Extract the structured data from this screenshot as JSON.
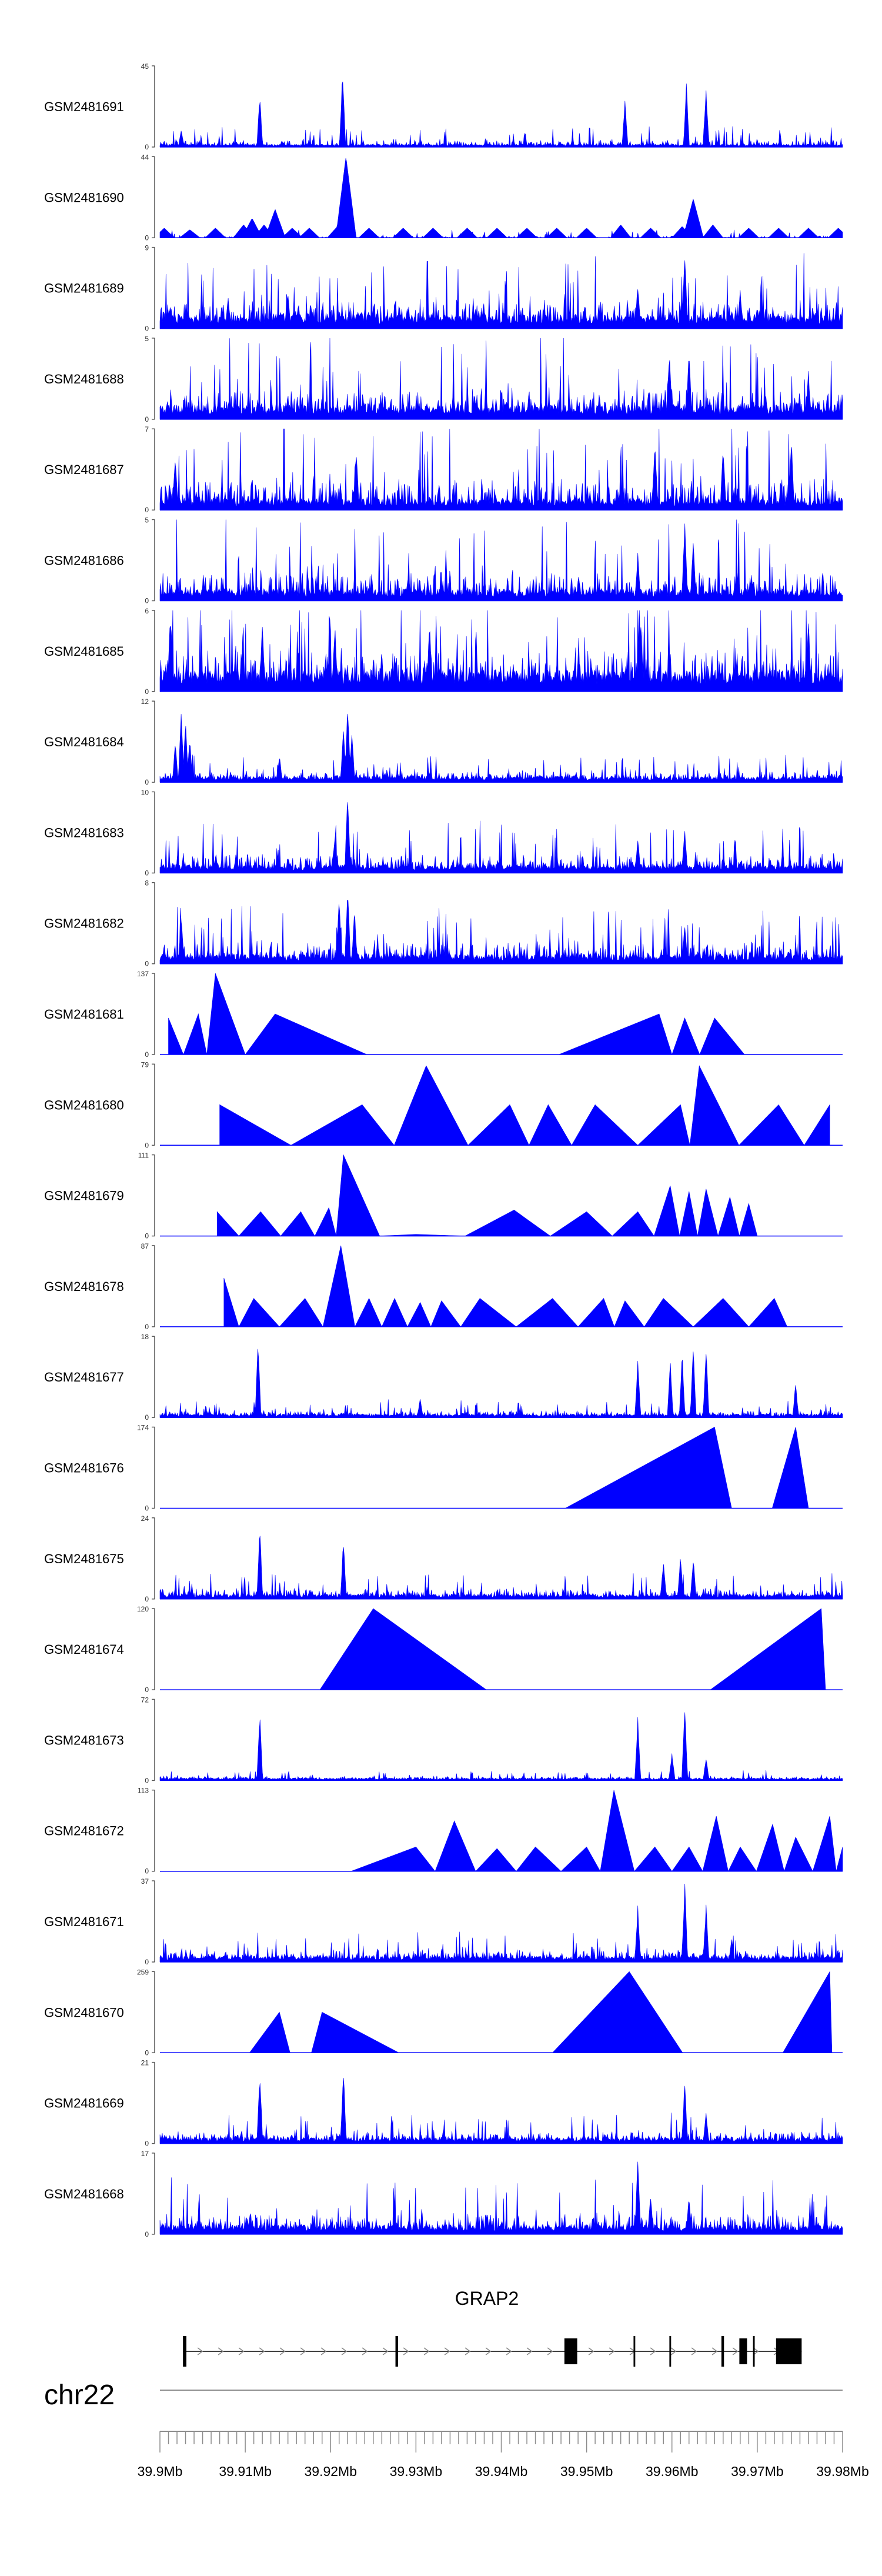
{
  "chart_data": {
    "type": "area",
    "title": "",
    "series_color": "#0000ff",
    "xlim": [
      39.9,
      39.98
    ],
    "x_ticks": [
      "39.9Mb",
      "39.91Mb",
      "39.92Mb",
      "39.93Mb",
      "39.94Mb",
      "39.95Mb",
      "39.96Mb",
      "39.97Mb",
      "39.98Mb"
    ],
    "chromosome": "chr22",
    "gene": {
      "name": "GRAP2",
      "start": 39.9027,
      "end": 39.9752,
      "exons": [
        [
          39.9027,
          39.9031
        ],
        [
          39.9276,
          39.9279
        ],
        [
          39.9474,
          39.9489
        ],
        [
          39.9555,
          39.9557
        ],
        [
          39.9597,
          39.9599
        ],
        [
          39.9658,
          39.9661
        ],
        [
          39.9679,
          39.9688
        ],
        [
          39.9695,
          39.9697
        ],
        [
          39.9722,
          39.9752
        ]
      ]
    },
    "tracks": [
      {
        "name": "GSM2481691",
        "ymax": "45",
        "style": "dense",
        "seed": 91,
        "base": 0.025,
        "noise": 0.12,
        "peaks": [
          [
            39.9025,
            0.22
          ],
          [
            39.9117,
            0.65
          ],
          [
            39.9214,
            1.0
          ],
          [
            39.9545,
            0.62
          ],
          [
            39.9617,
            0.82
          ],
          [
            39.964,
            0.75
          ]
        ]
      },
      {
        "name": "GSM2481690",
        "ymax": "44",
        "style": "dense",
        "seed": 90,
        "base": 0.0,
        "noise": 0.05,
        "peaks": [],
        "tri": [
          [
            39.9005,
            0.12
          ],
          [
            39.9035,
            0.1
          ],
          [
            39.9065,
            0.12
          ],
          [
            39.9098,
            0.16
          ],
          [
            39.9108,
            0.24
          ],
          [
            39.9122,
            0.16
          ],
          [
            39.9135,
            0.35
          ],
          [
            39.9155,
            0.12
          ],
          [
            39.9175,
            0.12
          ],
          [
            39.9208,
            0.14
          ],
          [
            39.9218,
            1.0
          ],
          [
            39.9245,
            0.12
          ],
          [
            39.9285,
            0.12
          ],
          [
            39.932,
            0.12
          ],
          [
            39.936,
            0.12
          ],
          [
            39.9395,
            0.12
          ],
          [
            39.943,
            0.12
          ],
          [
            39.9465,
            0.12
          ],
          [
            39.95,
            0.12
          ],
          [
            39.954,
            0.16
          ],
          [
            39.9575,
            0.12
          ],
          [
            39.9612,
            0.14
          ],
          [
            39.9625,
            0.48
          ],
          [
            39.9648,
            0.16
          ],
          [
            39.969,
            0.12
          ],
          [
            39.9725,
            0.12
          ],
          [
            39.976,
            0.12
          ],
          [
            39.9795,
            0.12
          ]
        ]
      },
      {
        "name": "GSM2481689",
        "ymax": "9",
        "style": "dense",
        "seed": 89,
        "base": 0.12,
        "noise": 0.38,
        "peaks": [
          [
            39.908,
            0.4
          ],
          [
            39.915,
            0.45
          ],
          [
            39.9615,
            0.95
          ],
          [
            39.956,
            0.55
          ],
          [
            39.968,
            0.5
          ]
        ]
      },
      {
        "name": "GSM2481688",
        "ymax": "5",
        "style": "dense",
        "seed": 88,
        "base": 0.12,
        "noise": 0.45,
        "peaks": [
          [
            39.9597,
            0.9
          ],
          [
            39.962,
            0.85
          ],
          [
            39.976,
            0.6
          ]
        ]
      },
      {
        "name": "GSM2481687",
        "ymax": "7",
        "style": "dense",
        "seed": 87,
        "base": 0.1,
        "noise": 0.5,
        "peaks": [
          [
            39.9018,
            0.72
          ],
          [
            39.923,
            0.78
          ],
          [
            39.958,
            0.9
          ],
          [
            39.966,
            0.85
          ],
          [
            39.974,
            0.92
          ]
        ]
      },
      {
        "name": "GSM2481686",
        "ymax": "5",
        "style": "dense",
        "seed": 86,
        "base": 0.1,
        "noise": 0.45,
        "peaks": [
          [
            39.9615,
            1.0
          ],
          [
            39.9625,
            0.8
          ],
          [
            39.956,
            0.6
          ]
        ]
      },
      {
        "name": "GSM2481685",
        "ymax": "6",
        "style": "dense",
        "seed": 85,
        "base": 0.18,
        "noise": 0.55,
        "peaks": [
          [
            39.9012,
            0.95
          ],
          [
            39.912,
            0.9
          ],
          [
            39.9205,
            0.85
          ],
          [
            39.9316,
            0.9
          ],
          [
            39.9562,
            0.9
          ],
          [
            39.976,
            0.9
          ]
        ]
      },
      {
        "name": "GSM2481684",
        "ymax": "12",
        "style": "dense",
        "seed": 84,
        "base": 0.05,
        "noise": 0.14,
        "peaks": [
          [
            39.9025,
            0.92
          ],
          [
            39.903,
            0.8
          ],
          [
            39.9035,
            0.55
          ],
          [
            39.9018,
            0.5
          ],
          [
            39.914,
            0.35
          ],
          [
            39.922,
            1.0
          ],
          [
            39.9215,
            0.7
          ],
          [
            39.9225,
            0.65
          ]
        ]
      },
      {
        "name": "GSM2481683",
        "ymax": "10",
        "style": "dense",
        "seed": 83,
        "base": 0.07,
        "noise": 0.28,
        "peaks": [
          [
            39.922,
            1.0
          ],
          [
            39.9205,
            0.5
          ],
          [
            39.9615,
            0.55
          ],
          [
            39.956,
            0.45
          ]
        ]
      },
      {
        "name": "GSM2481682",
        "ymax": "8",
        "style": "dense",
        "seed": 82,
        "base": 0.08,
        "noise": 0.32,
        "peaks": [
          [
            39.9025,
            0.62
          ],
          [
            39.921,
            0.9
          ],
          [
            39.922,
            1.0
          ],
          [
            39.9228,
            0.7
          ],
          [
            39.9615,
            0.5
          ]
        ]
      },
      {
        "name": "GSM2481681",
        "ymax": "137",
        "style": "tri",
        "tri": [
          [
            39.901,
            0.45
          ],
          [
            39.9045,
            0.5
          ],
          [
            39.9065,
            1.0
          ],
          [
            39.9135,
            0.5
          ],
          [
            39.935,
            0.0
          ],
          [
            39.9585,
            0.5
          ],
          [
            39.9615,
            0.45
          ],
          [
            39.965,
            0.45
          ],
          [
            39.972,
            0.0
          ]
        ]
      },
      {
        "name": "GSM2481680",
        "ymax": "79",
        "style": "tri",
        "tri": [
          [
            39.907,
            0.5
          ],
          [
            39.9237,
            0.5
          ],
          [
            39.9312,
            0.98
          ],
          [
            39.941,
            0.5
          ],
          [
            39.9455,
            0.5
          ],
          [
            39.951,
            0.5
          ],
          [
            39.961,
            0.5
          ],
          [
            39.9632,
            0.98
          ],
          [
            39.9725,
            0.5
          ],
          [
            39.9785,
            0.5
          ]
        ]
      },
      {
        "name": "GSM2481679",
        "ymax": "111",
        "style": "tri",
        "tri": [
          [
            39.9067,
            0.3
          ],
          [
            39.9118,
            0.3
          ],
          [
            39.9165,
            0.3
          ],
          [
            39.9198,
            0.35
          ],
          [
            39.9215,
            1.0
          ],
          [
            39.93,
            0.02
          ],
          [
            39.9415,
            0.32
          ],
          [
            39.95,
            0.3
          ],
          [
            39.956,
            0.3
          ],
          [
            39.9598,
            0.62
          ],
          [
            39.962,
            0.55
          ],
          [
            39.964,
            0.58
          ],
          [
            39.9668,
            0.48
          ],
          [
            39.969,
            0.4
          ],
          [
            39.971,
            0.0
          ]
        ]
      },
      {
        "name": "GSM2481678",
        "ymax": "87",
        "style": "tri",
        "tri": [
          [
            39.9075,
            0.6
          ],
          [
            39.911,
            0.35
          ],
          [
            39.917,
            0.35
          ],
          [
            39.9212,
            1.0
          ],
          [
            39.9245,
            0.35
          ],
          [
            39.9275,
            0.35
          ],
          [
            39.9305,
            0.3
          ],
          [
            39.933,
            0.32
          ],
          [
            39.9375,
            0.35
          ],
          [
            39.946,
            0.35
          ],
          [
            39.952,
            0.35
          ],
          [
            39.9545,
            0.32
          ],
          [
            39.959,
            0.35
          ],
          [
            39.966,
            0.35
          ],
          [
            39.972,
            0.35
          ],
          [
            39.975,
            0.0
          ]
        ]
      },
      {
        "name": "GSM2481677",
        "ymax": "18",
        "style": "dense",
        "seed": 77,
        "base": 0.03,
        "noise": 0.09,
        "peaks": [
          [
            39.9115,
            0.98
          ],
          [
            39.9305,
            0.25
          ],
          [
            39.956,
            0.7
          ],
          [
            39.9598,
            0.75
          ],
          [
            39.9612,
            0.82
          ],
          [
            39.9625,
            0.9
          ],
          [
            39.964,
            0.88
          ],
          [
            39.9745,
            0.45
          ]
        ]
      },
      {
        "name": "GSM2481676",
        "ymax": "174",
        "style": "tri",
        "tri": [
          [
            39.93,
            0.0
          ],
          [
            39.965,
            1.0
          ],
          [
            39.969,
            0.0
          ],
          [
            39.9745,
            1.0
          ],
          [
            39.9775,
            0.0
          ]
        ]
      },
      {
        "name": "GSM2481675",
        "ymax": "24",
        "style": "dense",
        "seed": 75,
        "base": 0.04,
        "noise": 0.14,
        "peaks": [
          [
            39.9117,
            0.92
          ],
          [
            39.9215,
            0.75
          ],
          [
            39.959,
            0.5
          ],
          [
            39.961,
            0.55
          ],
          [
            39.9625,
            0.52
          ]
        ]
      },
      {
        "name": "GSM2481674",
        "ymax": "120",
        "style": "tri",
        "tri": [
          [
            39.9125,
            0.0
          ],
          [
            39.925,
            1.0
          ],
          [
            39.9515,
            0.0
          ],
          [
            39.9775,
            1.0
          ],
          [
            39.9785,
            0.0
          ]
        ]
      },
      {
        "name": "GSM2481673",
        "ymax": "72",
        "style": "dense",
        "seed": 73,
        "base": 0.02,
        "noise": 0.05,
        "peaks": [
          [
            39.9117,
            0.85
          ],
          [
            39.956,
            0.8
          ],
          [
            39.96,
            0.35
          ],
          [
            39.9615,
            0.98
          ],
          [
            39.964,
            0.3
          ]
        ]
      },
      {
        "name": "GSM2481672",
        "ymax": "113",
        "style": "tri",
        "tri": [
          [
            39.9148,
            0.0
          ],
          [
            39.93,
            0.3
          ],
          [
            39.9345,
            0.62
          ],
          [
            39.9395,
            0.28
          ],
          [
            39.944,
            0.3
          ],
          [
            39.95,
            0.3
          ],
          [
            39.9532,
            1.0
          ],
          [
            39.958,
            0.3
          ],
          [
            39.962,
            0.3
          ],
          [
            39.9652,
            0.68
          ],
          [
            39.968,
            0.3
          ],
          [
            39.9718,
            0.58
          ],
          [
            39.9745,
            0.42
          ],
          [
            39.9785,
            0.68
          ],
          [
            39.98,
            0.3
          ]
        ]
      },
      {
        "name": "GSM2481671",
        "ymax": "37",
        "style": "dense",
        "seed": 71,
        "base": 0.05,
        "noise": 0.16,
        "peaks": [
          [
            39.956,
            0.7
          ],
          [
            39.9615,
            1.0
          ],
          [
            39.964,
            0.72
          ],
          [
            39.967,
            0.3
          ]
        ]
      },
      {
        "name": "GSM2481670",
        "ymax": "259",
        "style": "tri",
        "tri": [
          [
            39.907,
            0.0
          ],
          [
            39.914,
            0.5
          ],
          [
            39.9165,
            0.0
          ],
          [
            39.919,
            0.5
          ],
          [
            39.937,
            0.0
          ],
          [
            39.955,
            1.0
          ],
          [
            39.9675,
            0.0
          ],
          [
            39.9785,
            1.0
          ],
          [
            39.979,
            0.0
          ]
        ]
      },
      {
        "name": "GSM2481669",
        "ymax": "21",
        "style": "dense",
        "seed": 69,
        "base": 0.05,
        "noise": 0.16,
        "peaks": [
          [
            39.9117,
            0.92
          ],
          [
            39.9215,
            0.95
          ],
          [
            39.9615,
            0.8
          ],
          [
            39.964,
            0.4
          ]
        ]
      },
      {
        "name": "GSM2481668",
        "ymax": "17",
        "style": "dense",
        "seed": 68,
        "base": 0.08,
        "noise": 0.3,
        "peaks": [
          [
            39.956,
            0.98
          ],
          [
            39.9575,
            0.5
          ],
          [
            39.962,
            0.5
          ]
        ]
      }
    ]
  }
}
